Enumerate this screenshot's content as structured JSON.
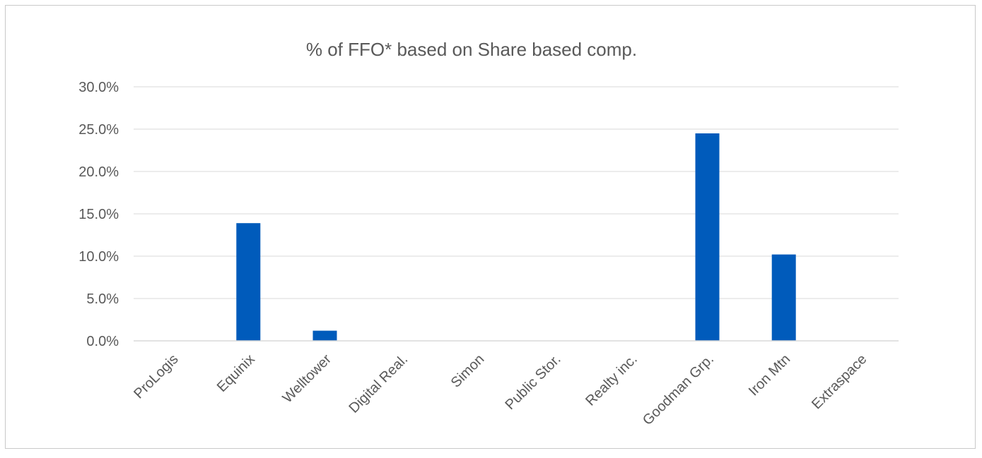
{
  "chart_data": {
    "type": "bar",
    "title": "% of FFO* based on Share based comp.",
    "xlabel": "",
    "ylabel": "",
    "categories": [
      "ProLogis",
      "Equinix",
      "Welltower",
      "Digital Real.",
      "Simon",
      "Public Stor.",
      "Realty inc.",
      "Goodman Grp.",
      "Iron Mtn",
      "Extraspace"
    ],
    "values": [
      0.0,
      13.9,
      1.2,
      0.0,
      0.0,
      0.0,
      0.0,
      24.5,
      10.2,
      0.0
    ],
    "ylim": [
      0,
      30
    ],
    "yticks": [
      0,
      5,
      10,
      15,
      20,
      25,
      30
    ],
    "ytick_labels": [
      "0.0%",
      "5.0%",
      "10.0%",
      "15.0%",
      "20.0%",
      "25.0%",
      "30.0%"
    ],
    "grid": true,
    "legend": "none",
    "colors": {
      "bar": "#005bbb"
    }
  }
}
